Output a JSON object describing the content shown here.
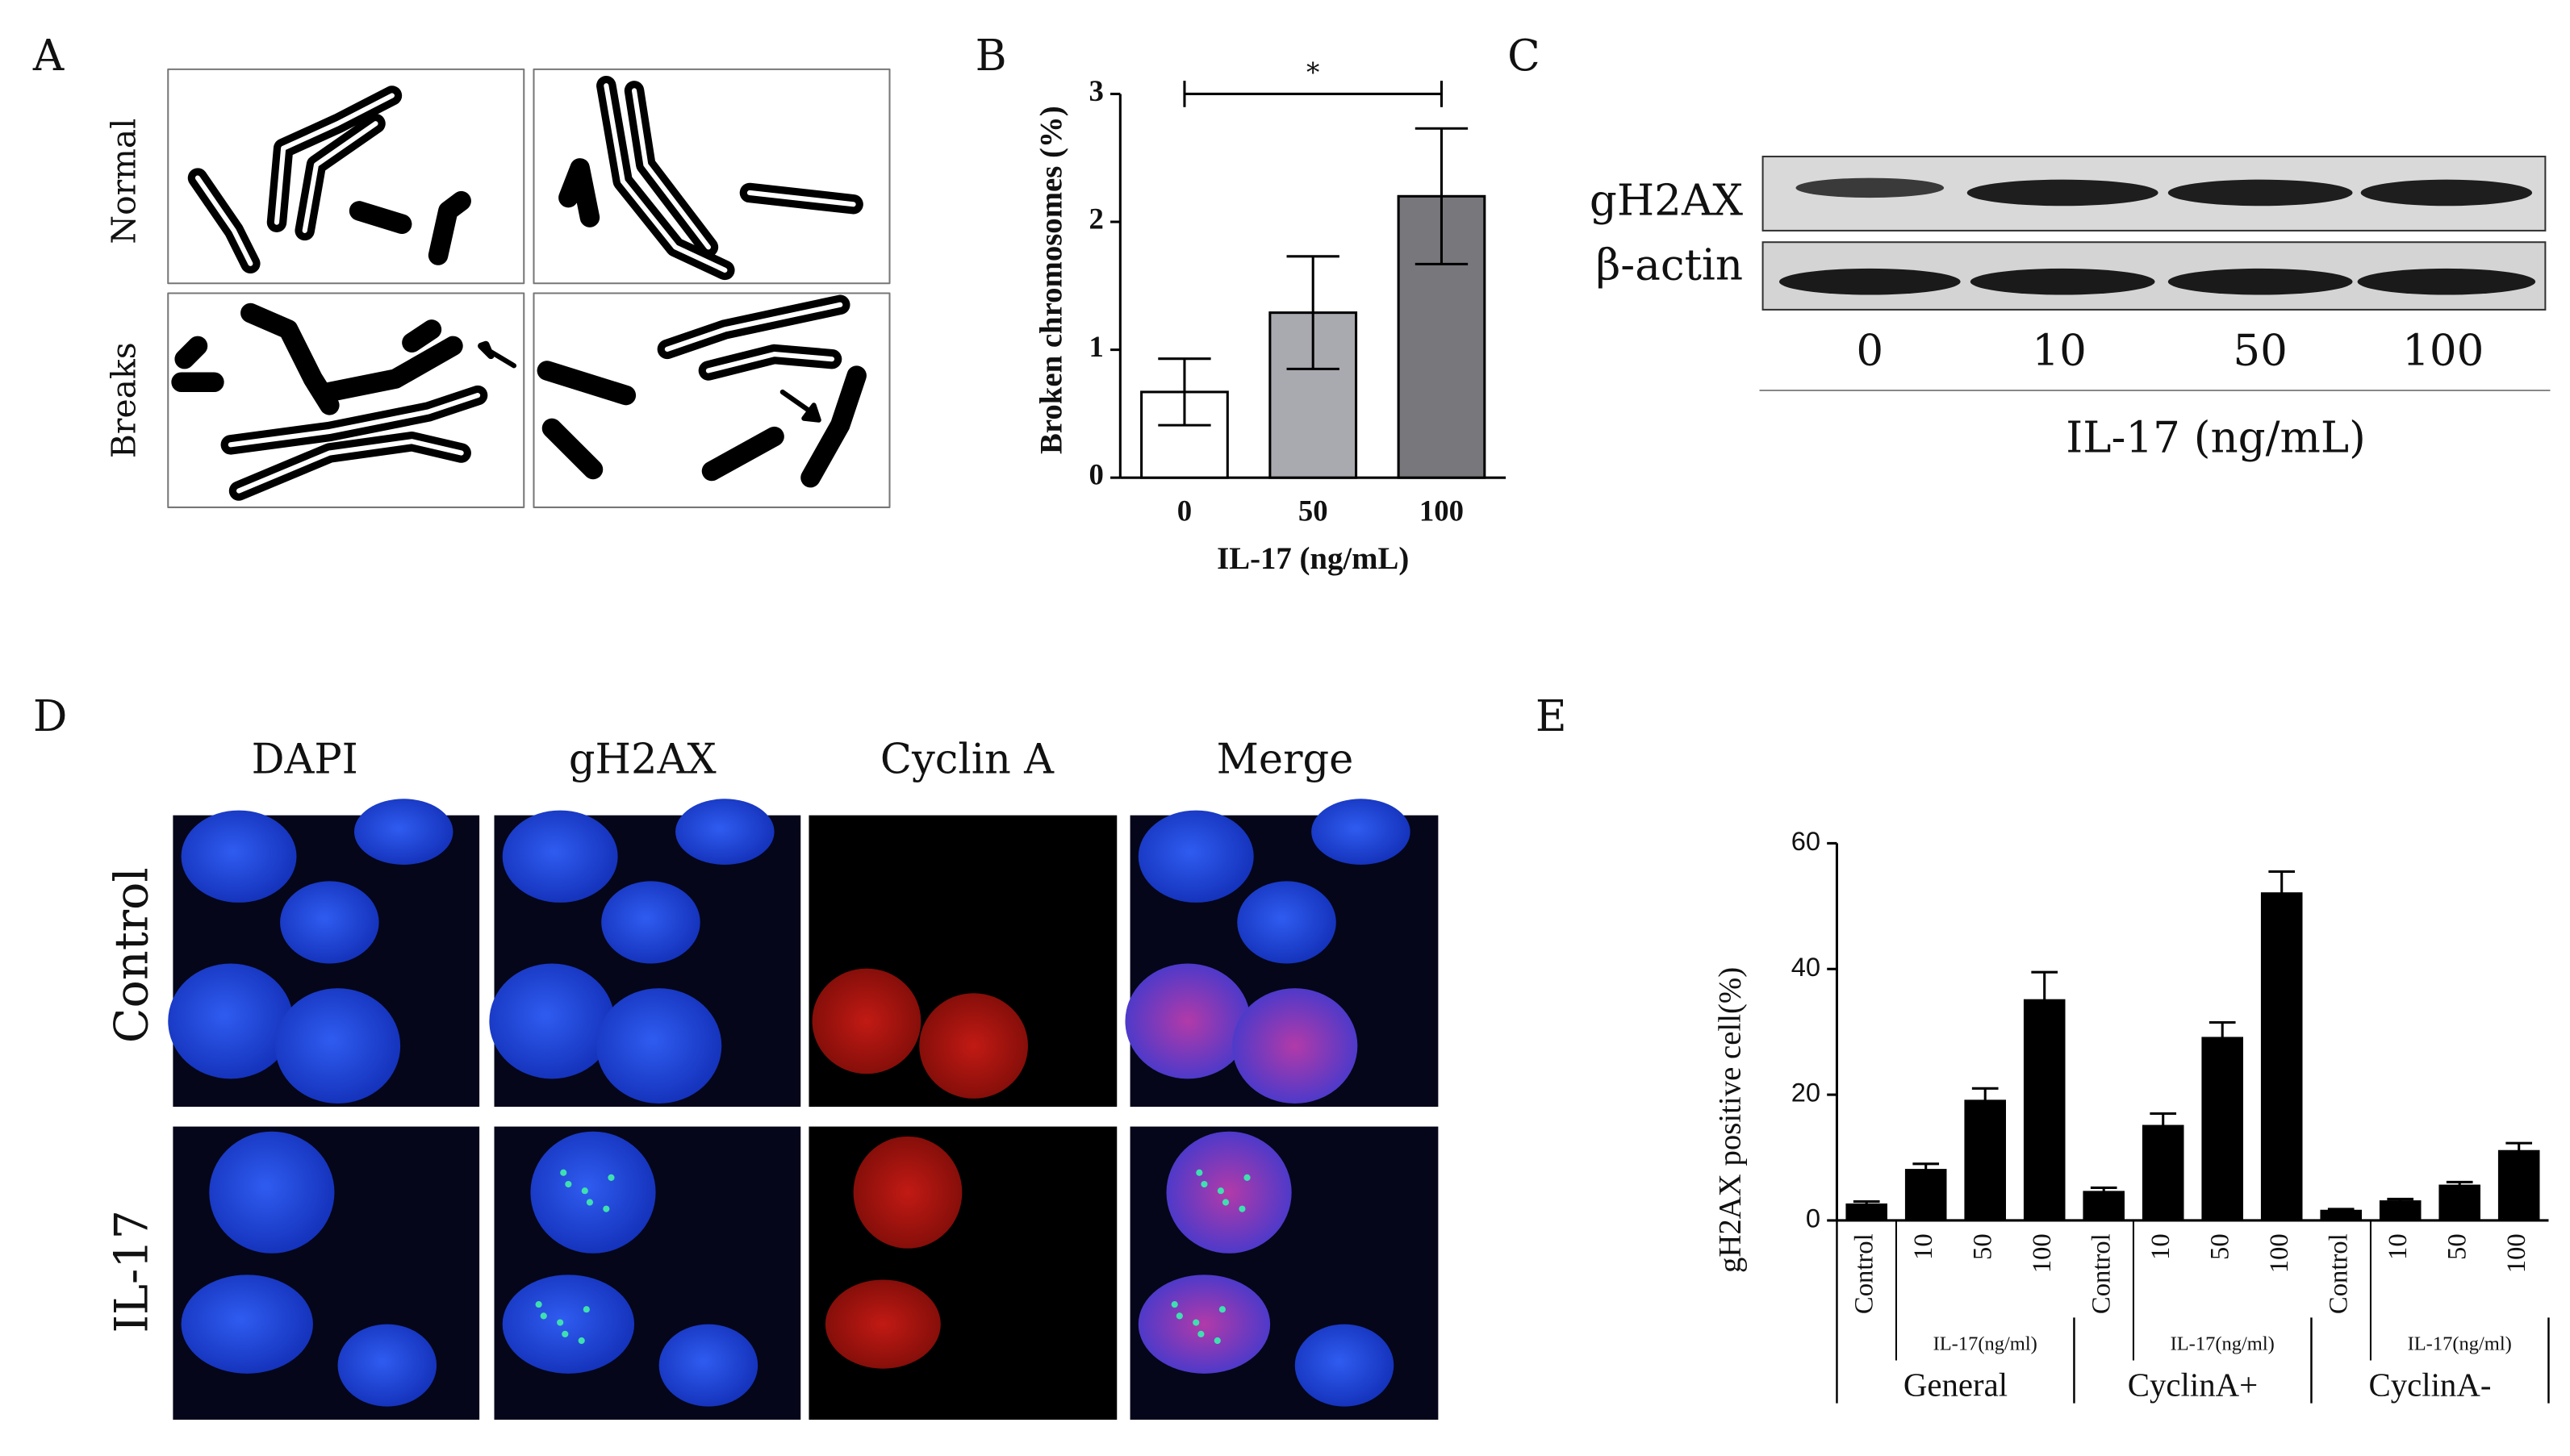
{
  "panel_labels": [
    "A",
    "B",
    "C",
    "D",
    "E"
  ],
  "panel_a": {
    "row_labels": [
      "Normal",
      "Breaks"
    ]
  },
  "panel_c": {
    "rows": [
      "gH2AX",
      "β-actin"
    ],
    "lanes": [
      "0",
      "10",
      "50",
      "100"
    ],
    "xlabel": "IL-17 (ng/mL)"
  },
  "panel_d": {
    "columns": [
      "DAPI",
      "gH2AX",
      "Cyclin A",
      "Merge"
    ],
    "rows": [
      "Control",
      "IL-17"
    ]
  },
  "chart_data": [
    {
      "type": "bar",
      "ylabel": "Broken chromosomes (%)",
      "xlabel": "IL-17 (ng/mL)",
      "categories": [
        "0",
        "50",
        "100"
      ],
      "values": [
        0.67,
        1.29,
        2.2
      ],
      "errors": [
        0.26,
        0.44,
        0.53
      ],
      "colors": [
        "#ffffff",
        "#a9a9b0",
        "#77777c"
      ],
      "significance": "*",
      "ylim": [
        0,
        3
      ],
      "yticks": [
        0,
        1,
        2,
        3
      ]
    },
    {
      "type": "bar",
      "ylabel": "gH2AX positive cell(%)",
      "categories": [
        "Control",
        "10",
        "50",
        "100",
        "Control",
        "10",
        "50",
        "100",
        "Control",
        "10",
        "50",
        "100"
      ],
      "values": [
        2.5,
        8,
        19,
        35,
        4.5,
        15,
        29,
        52,
        1.5,
        3,
        5.5,
        11
      ],
      "errors": [
        0.5,
        1,
        2,
        4.5,
        0.7,
        2,
        2.5,
        3.5,
        0.3,
        0.4,
        0.6,
        1.3
      ],
      "color": "#000000",
      "groups": [
        {
          "name": "General",
          "sublabel": "IL-17(ng/ml)"
        },
        {
          "name": "CyclinA+",
          "sublabel": "IL-17(ng/ml)"
        },
        {
          "name": "CyclinA-",
          "sublabel": "IL-17(ng/ml)"
        }
      ],
      "ylim": [
        0,
        60
      ],
      "yticks": [
        0,
        20,
        40,
        60
      ]
    }
  ]
}
